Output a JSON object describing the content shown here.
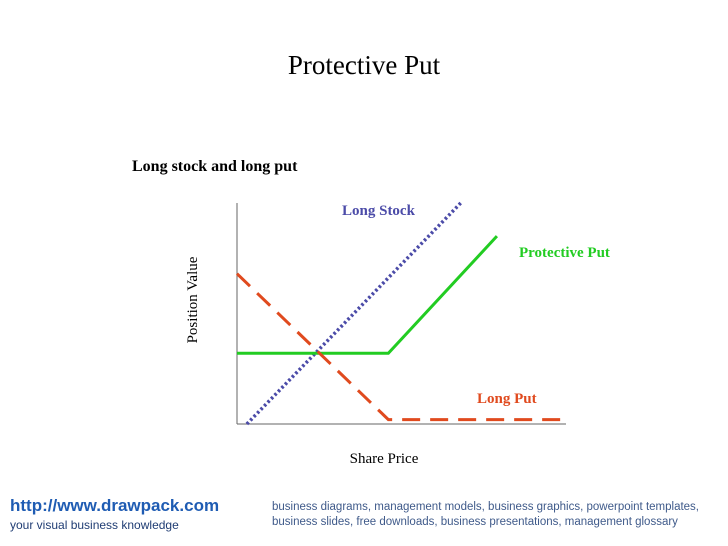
{
  "page": {
    "title": "Protective Put"
  },
  "footer": {
    "url": "http://www.drawpack.com",
    "tagline": "your visual business knowledge",
    "keywords": "business diagrams, management models, business graphics, powerpoint templates, business slides, free downloads, business presentations, management glossary"
  },
  "chart_data": {
    "type": "line",
    "title": "Long stock and long put",
    "xlabel": "Share Price",
    "ylabel": "Position Value",
    "grid": false,
    "axes": {
      "x_ticks": false,
      "y_ticks": false
    },
    "series": [
      {
        "name": "Long Stock",
        "color": "#4b4ba8",
        "style": "dotted",
        "points": [
          [
            0.03,
            0.0
          ],
          [
            0.68,
            1.0
          ]
        ]
      },
      {
        "name": "Protective Put",
        "color": "#22cc22",
        "style": "solid",
        "points": [
          [
            0.0,
            0.32
          ],
          [
            0.46,
            0.32
          ],
          [
            0.79,
            0.85
          ]
        ]
      },
      {
        "name": "Long Put",
        "color": "#e04a1e",
        "style": "dashed",
        "points": [
          [
            0.0,
            0.68
          ],
          [
            0.46,
            0.02
          ],
          [
            1.0,
            0.02
          ]
        ]
      }
    ]
  }
}
